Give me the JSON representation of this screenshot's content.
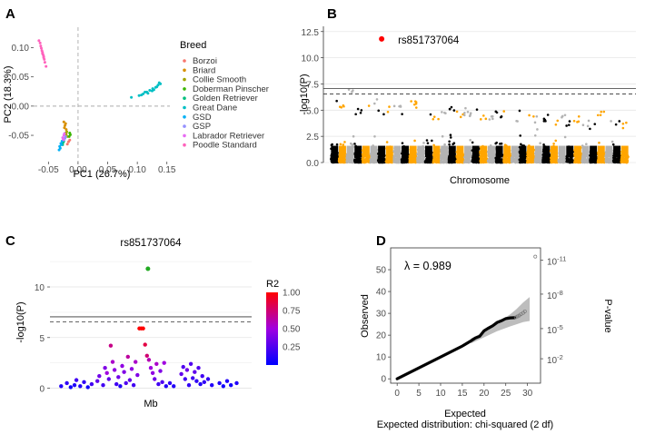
{
  "chart_data": [
    {
      "panel": "A",
      "type": "scatter",
      "title": "",
      "xlabel": "PC1 (26.7%)",
      "ylabel": "PC2 (18.3%)",
      "xlim": [
        -0.075,
        0.155
      ],
      "ylim": [
        -0.095,
        0.135
      ],
      "xticks": [
        -0.05,
        0.0,
        0.05,
        0.1,
        0.15
      ],
      "xtick_labels": [
        "-0.05",
        "0.00",
        "0.05",
        "0.10",
        "0.15"
      ],
      "yticks": [
        -0.05,
        0.0,
        0.05,
        0.1
      ],
      "ytick_labels": [
        "-0.05",
        "0.00",
        "0.05",
        "0.10"
      ],
      "legend_title": "Breed",
      "legend_position": "right",
      "series": [
        {
          "name": "Borzoi",
          "color": "#F8766D",
          "points": [
            [
              -0.016,
              -0.061
            ],
            [
              -0.018,
              -0.065
            ],
            [
              -0.014,
              -0.058
            ]
          ]
        },
        {
          "name": "Briard",
          "color": "#D89000",
          "points": [
            [
              -0.022,
              -0.033
            ],
            [
              -0.021,
              -0.03
            ],
            [
              -0.023,
              -0.037
            ],
            [
              -0.02,
              -0.04
            ],
            [
              -0.024,
              -0.027
            ]
          ]
        },
        {
          "name": "Collie Smooth",
          "color": "#A3A500",
          "points": [
            [
              -0.019,
              -0.044
            ],
            [
              -0.02,
              -0.048
            ],
            [
              -0.018,
              -0.052
            ],
            [
              -0.021,
              -0.046
            ]
          ]
        },
        {
          "name": "Doberman Pinscher",
          "color": "#39B600",
          "points": [
            [
              -0.014,
              -0.046
            ],
            [
              -0.015,
              -0.052
            ],
            [
              -0.013,
              -0.049
            ]
          ]
        },
        {
          "name": "Golden Retriever",
          "color": "#00BF7D",
          "points": [
            [
              -0.025,
              -0.062
            ],
            [
              -0.026,
              -0.066
            ],
            [
              -0.024,
              -0.06
            ]
          ]
        },
        {
          "name": "Great Dane",
          "color": "#00BFC4",
          "points": [
            [
              0.103,
              0.018
            ],
            [
              0.11,
              0.021
            ],
            [
              0.116,
              0.024
            ],
            [
              0.121,
              0.027
            ],
            [
              0.126,
              0.03
            ],
            [
              0.131,
              0.032
            ],
            [
              0.135,
              0.036
            ],
            [
              0.139,
              0.038
            ],
            [
              0.118,
              0.022
            ],
            [
              0.125,
              0.026
            ],
            [
              0.133,
              0.033
            ],
            [
              0.107,
              0.019
            ],
            [
              0.137,
              0.04
            ],
            [
              0.09,
              0.015
            ],
            [
              0.128,
              0.028
            ],
            [
              0.113,
              0.024
            ]
          ]
        },
        {
          "name": "GSD",
          "color": "#00B0F6",
          "points": [
            [
              -0.029,
              -0.064
            ],
            [
              -0.031,
              -0.069
            ],
            [
              -0.03,
              -0.072
            ],
            [
              -0.027,
              -0.06
            ],
            [
              -0.032,
              -0.075
            ],
            [
              -0.028,
              -0.066
            ]
          ]
        },
        {
          "name": "GSP",
          "color": "#9590FF",
          "points": [
            [
              -0.022,
              -0.055
            ],
            [
              -0.024,
              -0.058
            ],
            [
              -0.021,
              -0.052
            ]
          ]
        },
        {
          "name": "Labrador Retriever",
          "color": "#E76BF3",
          "points": [
            [
              -0.024,
              -0.05
            ],
            [
              -0.026,
              -0.054
            ],
            [
              -0.025,
              -0.057
            ],
            [
              -0.023,
              -0.047
            ]
          ]
        },
        {
          "name": "Poodle Standard",
          "color": "#FF62BC",
          "points": [
            [
              -0.066,
              0.112
            ],
            [
              -0.064,
              0.108
            ],
            [
              -0.063,
              0.103
            ],
            [
              -0.062,
              0.099
            ],
            [
              -0.061,
              0.095
            ],
            [
              -0.06,
              0.092
            ],
            [
              -0.059,
              0.088
            ],
            [
              -0.058,
              0.085
            ],
            [
              -0.057,
              0.08
            ],
            [
              -0.056,
              0.075
            ],
            [
              -0.054,
              0.068
            ],
            [
              -0.06,
              0.09
            ],
            [
              -0.058,
              0.083
            ]
          ]
        }
      ]
    },
    {
      "panel": "B",
      "type": "scatter",
      "subtype": "manhattan",
      "title": "",
      "xlabel": "Chromosome",
      "ylabel": "-log10(P)",
      "xlim": [
        0,
        38
      ],
      "ylim": [
        0,
        13
      ],
      "yticks": [
        0.0,
        2.5,
        5.0,
        7.5,
        10.0,
        12.5
      ],
      "ytick_labels": [
        "0.0",
        "2.5",
        "5.0",
        "7.5",
        "10.0",
        "12.5"
      ],
      "chromosome_colors": [
        "#000000",
        "#FFA500",
        "#B3B3B3"
      ],
      "chromosome_count": 38,
      "thresholds": [
        {
          "value": 7.05,
          "style": "solid"
        },
        {
          "value": 6.55,
          "style": "dashed"
        }
      ],
      "chromosome_peaks": [
        6.0,
        5.8,
        7.0,
        5.3,
        6.1,
        6.3,
        5.2,
        5.4,
        5.5,
        5.3,
        5.9,
        5.2,
        5.0,
        4.8,
        5.1,
        5.4,
        4.9,
        5.2,
        5.6,
        4.7,
        4.6,
        4.9,
        5.1,
        4.5,
        5.8,
        4.8,
        4.4,
        4.6,
        4.2,
        4.9,
        4.1,
        4.4,
        4.0,
        4.3,
        5.0,
        4.5,
        4.0,
        3.8
      ],
      "top_hit": {
        "snp": "rs851737064",
        "chromosome": 7,
        "value": 11.8,
        "color": "#FF0000"
      }
    },
    {
      "panel": "C",
      "type": "scatter",
      "subtype": "regional",
      "title": "rs851737064",
      "xlabel": "Mb",
      "ylabel": "-log10(P)",
      "ylim": [
        -0.4,
        13.5
      ],
      "yticks": [
        0,
        5,
        10
      ],
      "ytick_labels": [
        "0",
        "5",
        "10"
      ],
      "thresholds": [
        {
          "value": 7.05,
          "style": "solid"
        },
        {
          "value": 6.55,
          "style": "dashed"
        }
      ],
      "colorbar": {
        "title": "R2",
        "ticks": [
          1.0,
          0.75,
          0.5,
          0.25
        ],
        "tick_labels": [
          "1.00",
          "0.75",
          "0.50",
          "0.25"
        ],
        "low_color": "#0000FF",
        "mid_color": "#A000E0",
        "high_color": "#FF0000"
      },
      "lead_snp": {
        "x": 0.485,
        "value": 11.8,
        "color": "#22AA22"
      },
      "points": [
        [
          0.03,
          0.2,
          0.1
        ],
        [
          0.06,
          0.5,
          0.15
        ],
        [
          0.08,
          0.1,
          0.05
        ],
        [
          0.1,
          0.3,
          0.1
        ],
        [
          0.11,
          0.8,
          0.2
        ],
        [
          0.13,
          0.2,
          0.1
        ],
        [
          0.15,
          0.6,
          0.15
        ],
        [
          0.17,
          0.1,
          0.05
        ],
        [
          0.19,
          0.4,
          0.2
        ],
        [
          0.22,
          0.7,
          0.3
        ],
        [
          0.23,
          1.2,
          0.35
        ],
        [
          0.25,
          0.3,
          0.2
        ],
        [
          0.26,
          2.0,
          0.4
        ],
        [
          0.27,
          1.5,
          0.5
        ],
        [
          0.28,
          0.9,
          0.3
        ],
        [
          0.29,
          4.2,
          0.7
        ],
        [
          0.3,
          2.6,
          0.55
        ],
        [
          0.31,
          1.8,
          0.45
        ],
        [
          0.32,
          0.4,
          0.2
        ],
        [
          0.33,
          1.1,
          0.35
        ],
        [
          0.34,
          0.2,
          0.1
        ],
        [
          0.35,
          2.2,
          0.45
        ],
        [
          0.36,
          1.6,
          0.4
        ],
        [
          0.37,
          0.5,
          0.25
        ],
        [
          0.38,
          3.1,
          0.65
        ],
        [
          0.39,
          0.8,
          0.3
        ],
        [
          0.4,
          1.9,
          0.45
        ],
        [
          0.41,
          0.3,
          0.2
        ],
        [
          0.42,
          2.6,
          0.55
        ],
        [
          0.43,
          1.3,
          0.4
        ],
        [
          0.44,
          5.9,
          1.0
        ],
        [
          0.45,
          5.9,
          1.0
        ],
        [
          0.46,
          5.9,
          1.0
        ],
        [
          0.47,
          4.3,
          0.85
        ],
        [
          0.48,
          3.2,
          0.75
        ],
        [
          0.49,
          2.8,
          0.6
        ],
        [
          0.5,
          2.0,
          0.5
        ],
        [
          0.51,
          1.5,
          0.45
        ],
        [
          0.52,
          0.9,
          0.35
        ],
        [
          0.53,
          2.4,
          0.55
        ],
        [
          0.54,
          0.4,
          0.2
        ],
        [
          0.55,
          1.7,
          0.4
        ],
        [
          0.56,
          0.6,
          0.25
        ],
        [
          0.57,
          2.5,
          0.5
        ],
        [
          0.58,
          0.2,
          0.1
        ],
        [
          0.6,
          0.5,
          0.15
        ],
        [
          0.62,
          0.2,
          0.1
        ],
        [
          0.66,
          1.4,
          0.3
        ],
        [
          0.67,
          2.1,
          0.25
        ],
        [
          0.68,
          0.9,
          0.2
        ],
        [
          0.69,
          1.8,
          0.35
        ],
        [
          0.7,
          0.3,
          0.15
        ],
        [
          0.71,
          2.4,
          0.25
        ],
        [
          0.72,
          1.0,
          0.2
        ],
        [
          0.73,
          1.6,
          0.3
        ],
        [
          0.74,
          0.7,
          0.15
        ],
        [
          0.75,
          2.0,
          0.25
        ],
        [
          0.76,
          0.4,
          0.1
        ],
        [
          0.77,
          1.2,
          0.2
        ],
        [
          0.78,
          0.6,
          0.15
        ],
        [
          0.8,
          0.9,
          0.15
        ],
        [
          0.82,
          0.3,
          0.1
        ],
        [
          0.86,
          0.5,
          0.1
        ],
        [
          0.88,
          0.2,
          0.05
        ],
        [
          0.9,
          0.7,
          0.1
        ],
        [
          0.92,
          0.3,
          0.05
        ],
        [
          0.95,
          0.5,
          0.1
        ]
      ]
    },
    {
      "panel": "D",
      "type": "line",
      "subtype": "qq",
      "title": "",
      "annotation": "λ = 0.989",
      "xlabel": "Expected",
      "xlabel2": "Expected distribution: chi-squared (2 df)",
      "ylabel": "Observed",
      "ylabel_right": "P-value",
      "xlim": [
        -1.5,
        33
      ],
      "ylim": [
        -2,
        60
      ],
      "xticks": [
        0,
        5,
        10,
        15,
        20,
        25,
        30
      ],
      "xtick_labels": [
        "0",
        "5",
        "10",
        "15",
        "20",
        "25",
        "30"
      ],
      "yticks": [
        0,
        10,
        20,
        30,
        40,
        50
      ],
      "ytick_labels": [
        "0",
        "10",
        "20",
        "30",
        "40",
        "50"
      ],
      "right_axis_ticks": [
        {
          "at": 54.3,
          "base": "10",
          "exp": "-11"
        },
        {
          "at": 38.8,
          "base": "10",
          "exp": "-8"
        },
        {
          "at": 23.0,
          "base": "10",
          "exp": "-5"
        },
        {
          "at": 9.2,
          "base": "10",
          "exp": "-2"
        }
      ],
      "observed_line": [
        [
          0,
          0
        ],
        [
          5,
          5
        ],
        [
          10,
          10
        ],
        [
          15,
          15
        ],
        [
          17,
          17.4
        ],
        [
          18,
          18.7
        ],
        [
          19,
          19.5
        ],
        [
          20,
          22.0
        ],
        [
          21,
          23.2
        ],
        [
          22,
          24.3
        ],
        [
          23,
          25.8
        ],
        [
          24,
          26.6
        ],
        [
          25,
          27.6
        ],
        [
          26,
          27.9
        ],
        [
          27,
          28.0
        ]
      ],
      "observed_tail": [
        [
          27.3,
          28.2
        ],
        [
          27.7,
          28.6
        ],
        [
          28.1,
          29.0
        ],
        [
          28.5,
          29.6
        ],
        [
          29.0,
          30.2
        ],
        [
          29.4,
          30.9
        ],
        [
          31.8,
          56.0
        ]
      ],
      "confidence_band_upper": [
        [
          17,
          18.5
        ],
        [
          20,
          21.5
        ],
        [
          23,
          25.5
        ],
        [
          26,
          29.5
        ],
        [
          27.5,
          32.0
        ],
        [
          29,
          35.0
        ],
        [
          30.5,
          37.5
        ]
      ],
      "confidence_band_lower": [
        [
          30.5,
          26.5
        ],
        [
          29,
          26.0
        ],
        [
          27.5,
          25.0
        ],
        [
          26,
          24.0
        ],
        [
          23,
          21.8
        ],
        [
          20,
          19.0
        ],
        [
          17,
          16.2
        ]
      ]
    }
  ]
}
